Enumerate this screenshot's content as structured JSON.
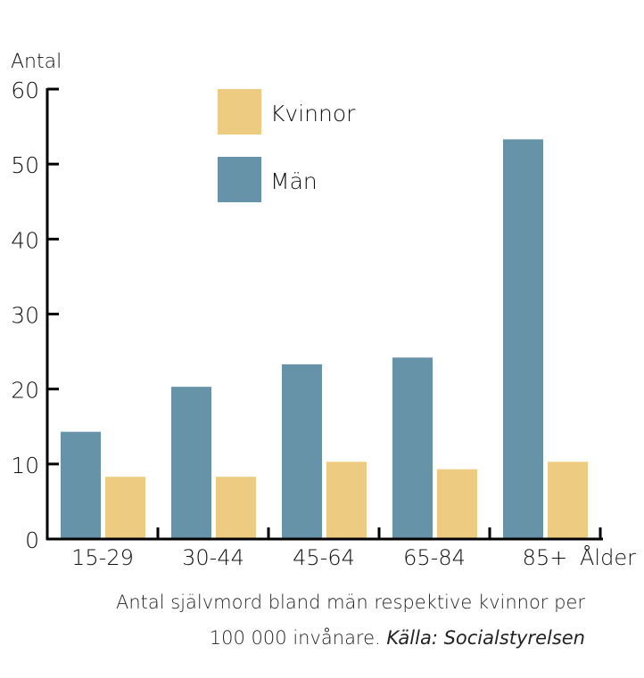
{
  "chart_data": {
    "type": "bar",
    "ylabel": "Antal",
    "xlabel": "Ålder",
    "categories": [
      "15-29",
      "30-44",
      "45-64",
      "65-84",
      "85+"
    ],
    "ylim": [
      0,
      60
    ],
    "yticks": [
      0,
      10,
      20,
      30,
      40,
      50,
      60
    ],
    "series": [
      {
        "name": "Män",
        "color": "#6793a8",
        "values": [
          14.3,
          20.3,
          23.3,
          24.2,
          53.3
        ]
      },
      {
        "name": "Kvinnor",
        "color": "#edcb80",
        "values": [
          8.3,
          8.3,
          10.3,
          9.3,
          10.3
        ]
      }
    ],
    "legend": [
      "Kvinnor",
      "Män"
    ],
    "legend_position": "top-center",
    "caption_line1": "Antal självmord bland män respektive kvinnor per",
    "caption_line2": "100 000 invånare.",
    "caption_source": "Källa: Socialstyrelsen"
  }
}
